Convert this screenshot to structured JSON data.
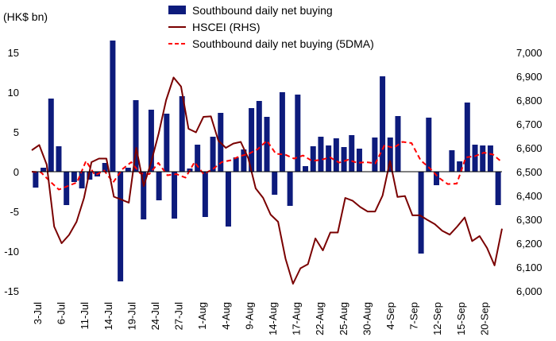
{
  "chart_data": {
    "type": "bar",
    "title": "",
    "left_axis_label": "(HK$ bn)",
    "left_ylim": [
      -15,
      15
    ],
    "left_ticks": [
      -15,
      -10,
      -5,
      0,
      5,
      10,
      15
    ],
    "right_ylim": [
      6000,
      7000
    ],
    "right_ticks": [
      6000,
      6100,
      6200,
      6300,
      6400,
      6500,
      6600,
      6700,
      6800,
      6900,
      7000
    ],
    "right_tick_labels": [
      "6,000",
      "6,100",
      "6,200",
      "6,300",
      "6,400",
      "6,500",
      "6,600",
      "6,700",
      "6,800",
      "6,900",
      "7,000"
    ],
    "x_tick_labels": [
      "3-Jul",
      "6-Jul",
      "11-Jul",
      "14-Jul",
      "19-Jul",
      "24-Jul",
      "27-Jul",
      "1-Aug",
      "4-Aug",
      "9-Aug",
      "14-Aug",
      "17-Aug",
      "22-Aug",
      "25-Aug",
      "30-Aug",
      "4-Sep",
      "7-Sep",
      "12-Sep",
      "15-Sep",
      "20-Sep"
    ],
    "colors": {
      "bars": "#0d1b7c",
      "hscei": "#7a0000",
      "dma": "#ff0000"
    },
    "series": [
      {
        "name": "Southbound daily net buying",
        "type": "bar",
        "axis": "left",
        "values": [
          -2.0,
          0.5,
          9.2,
          3.2,
          -4.2,
          -1.3,
          -2.1,
          -1.0,
          -0.6,
          1.1,
          16.5,
          -13.8,
          0.5,
          9.0,
          -6.0,
          7.8,
          -3.6,
          7.3,
          -5.9,
          9.5,
          0.4,
          3.4,
          -5.7,
          4.4,
          7.4,
          -6.9,
          1.8,
          2.8,
          8.0,
          8.9,
          6.9,
          -2.9,
          10.0,
          -4.3,
          9.7,
          0.7,
          3.2,
          4.4,
          3.3,
          4.2,
          3.1,
          4.6,
          2.9,
          0.0,
          4.3,
          12.0,
          4.3,
          7.0,
          0.0,
          0.0,
          -10.3,
          6.8,
          -1.7,
          0.0,
          2.7,
          1.3,
          8.7,
          3.4,
          3.3,
          3.3,
          -4.2
        ]
      },
      {
        "name": "HSCEI (RHS)",
        "type": "line",
        "axis": "right",
        "values": [
          6590,
          6612,
          6530,
          6270,
          6200,
          6235,
          6290,
          6390,
          6540,
          6555,
          6555,
          6395,
          6383,
          6370,
          6600,
          6440,
          6540,
          6660,
          6800,
          6895,
          6857,
          6680,
          6665,
          6730,
          6732,
          6630,
          6600,
          6618,
          6625,
          6557,
          6430,
          6390,
          6320,
          6290,
          6135,
          6030,
          6095,
          6112,
          6220,
          6170,
          6245,
          6245,
          6390,
          6378,
          6352,
          6333,
          6333,
          6400,
          6545,
          6394,
          6398,
          6317,
          6317,
          6298,
          6280,
          6252,
          6236,
          6270,
          6308,
          6209,
          6230,
          6180,
          6107,
          6261
        ]
      },
      {
        "name": "Southbound daily net buying (5DMA)",
        "type": "line",
        "axis": "right",
        "values": [
          6500,
          6498,
          6460,
          6425,
          6440,
          6455,
          6545,
          6485,
          6505,
          6455,
          6510,
          6540,
          6493,
          6490,
          6537,
          6485,
          6490,
          6475,
          6540,
          6490,
          6510,
          6540,
          6548,
          6565,
          6575,
          6595,
          6630,
          6575,
          6572,
          6555,
          6568,
          6545,
          6550,
          6560,
          6538,
          6550,
          6537,
          6540,
          6535,
          6610,
          6600,
          6625,
          6620,
          6548,
          6515,
          6475,
          6448,
          6450,
          6560,
          6565,
          6580,
          6572,
          6540
        ]
      }
    ],
    "legend": {
      "position": "top-center",
      "entries": [
        "Southbound daily net buying",
        "HSCEI (RHS)",
        "Southbound daily net buying (5DMA)"
      ]
    }
  }
}
